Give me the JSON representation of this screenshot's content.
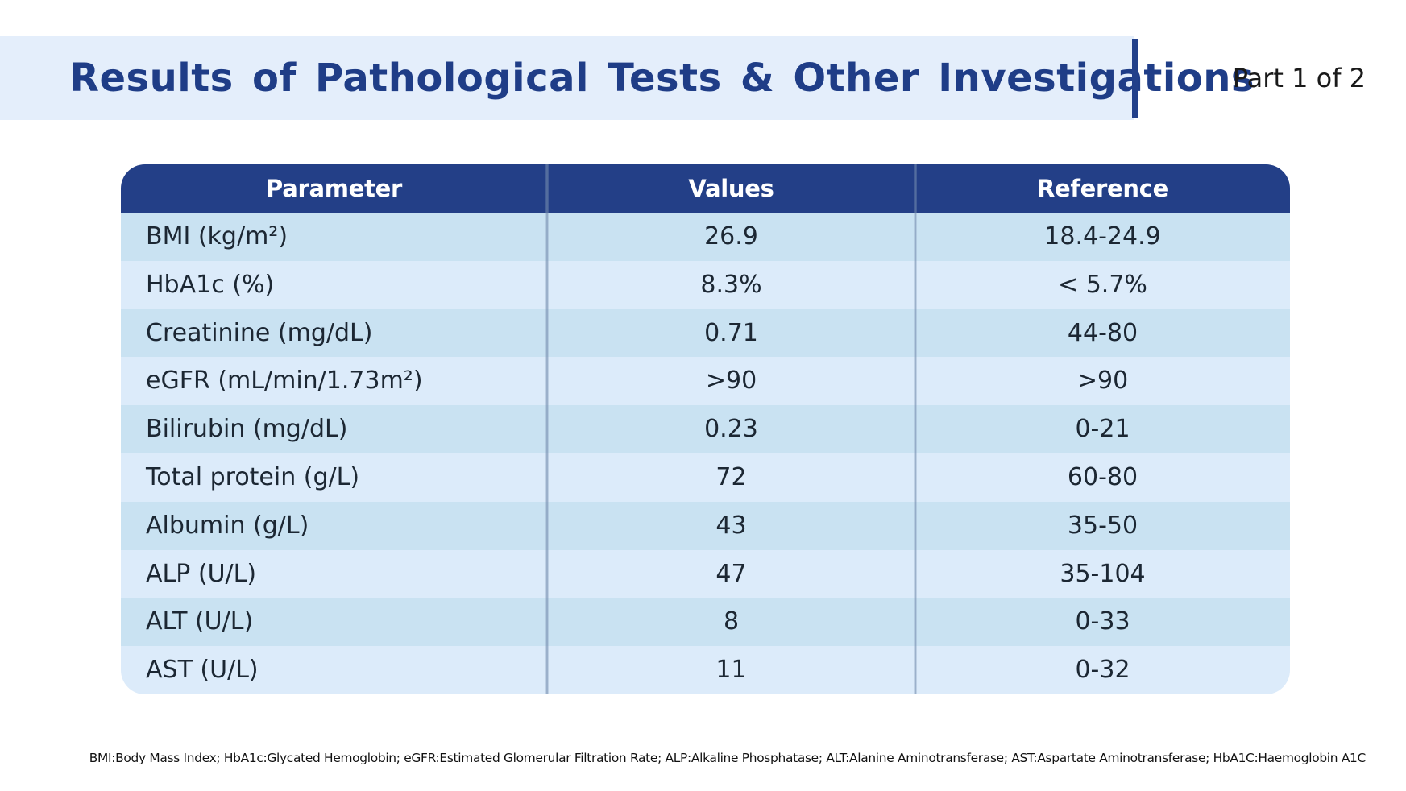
{
  "header": {
    "title": "Results of Pathological Tests & Other Investigations",
    "part_label": "Part 1 of 2"
  },
  "table": {
    "columns": [
      "Parameter",
      "Values",
      "Reference"
    ],
    "rows": [
      {
        "parameter": "BMI (kg/m²)",
        "value": "26.9",
        "reference": "18.4-24.9"
      },
      {
        "parameter": "HbA1c (%)",
        "value": "8.3%",
        "reference": "< 5.7%"
      },
      {
        "parameter": "Creatinine (mg/dL)",
        "value": "0.71",
        "reference": "44-80"
      },
      {
        "parameter": "eGFR (mL/min/1.73m²)",
        "value": ">90",
        "reference": ">90"
      },
      {
        "parameter": "Bilirubin (mg/dL)",
        "value": "0.23",
        "reference": "0-21"
      },
      {
        "parameter": "Total protein (g/L)",
        "value": "72",
        "reference": "60-80"
      },
      {
        "parameter": "Albumin (g/L)",
        "value": "43",
        "reference": "35-50"
      },
      {
        "parameter": "ALP (U/L)",
        "value": "47",
        "reference": "35-104"
      },
      {
        "parameter": "ALT (U/L)",
        "value": "8",
        "reference": "0-33"
      },
      {
        "parameter": "AST (U/L)",
        "value": "11",
        "reference": "0-32"
      }
    ]
  },
  "footnote": "BMI:Body Mass Index; HbA1c:Glycated Hemoglobin; eGFR:Estimated Glomerular Filtration Rate; ALP:Alkaline Phosphatase; ALT:Alanine Aminotransferase; AST:Aspartate Aminotransferase; HbA1C:Haemoglobin A1C",
  "colors": {
    "title_text": "#1f3d87",
    "title_band": "#e4eefb",
    "header_bg": "#233f87",
    "row_odd": "#c9e2f2",
    "row_even": "#dcebfa"
  }
}
